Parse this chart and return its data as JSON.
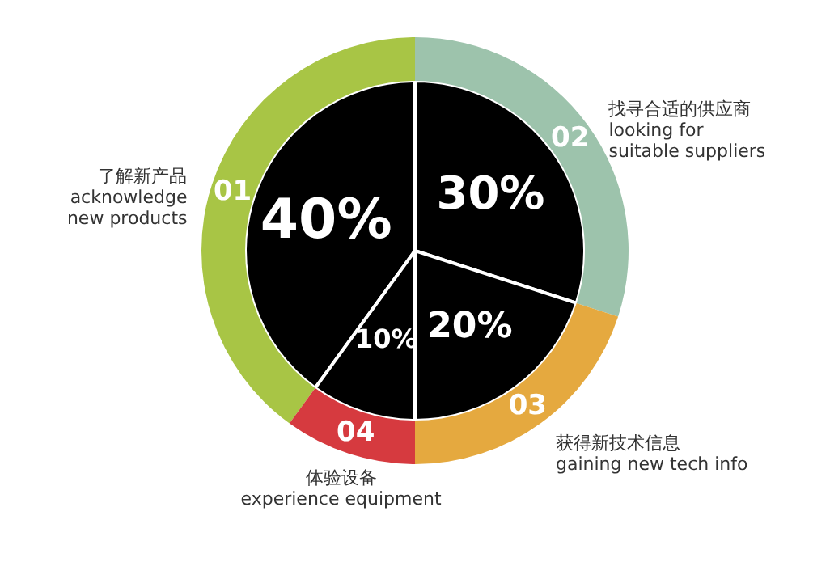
{
  "chart_data": {
    "type": "pie",
    "categories": [
      "了解新产品\nacknowledge\nnew products",
      "找寻合适的供应商\nlooking for\nsuitable suppliers",
      "获得新技术信息\ngaining new tech info",
      "体验设备\nexperience equipment"
    ],
    "series": [
      {
        "color": "#000000",
        "values": [
          40,
          30,
          20,
          10
        ],
        "value_labels": [
          "40%",
          "30%",
          "20%",
          "10%"
        ]
      },
      {
        "colors": [
          "#a8c545",
          "#9dc3ac",
          "#e5a93f",
          "#d63a3f"
        ],
        "values": [
          40,
          30,
          20,
          10
        ]
      }
    ],
    "annotations": [
      "01",
      "02",
      "03",
      "04"
    ]
  }
}
